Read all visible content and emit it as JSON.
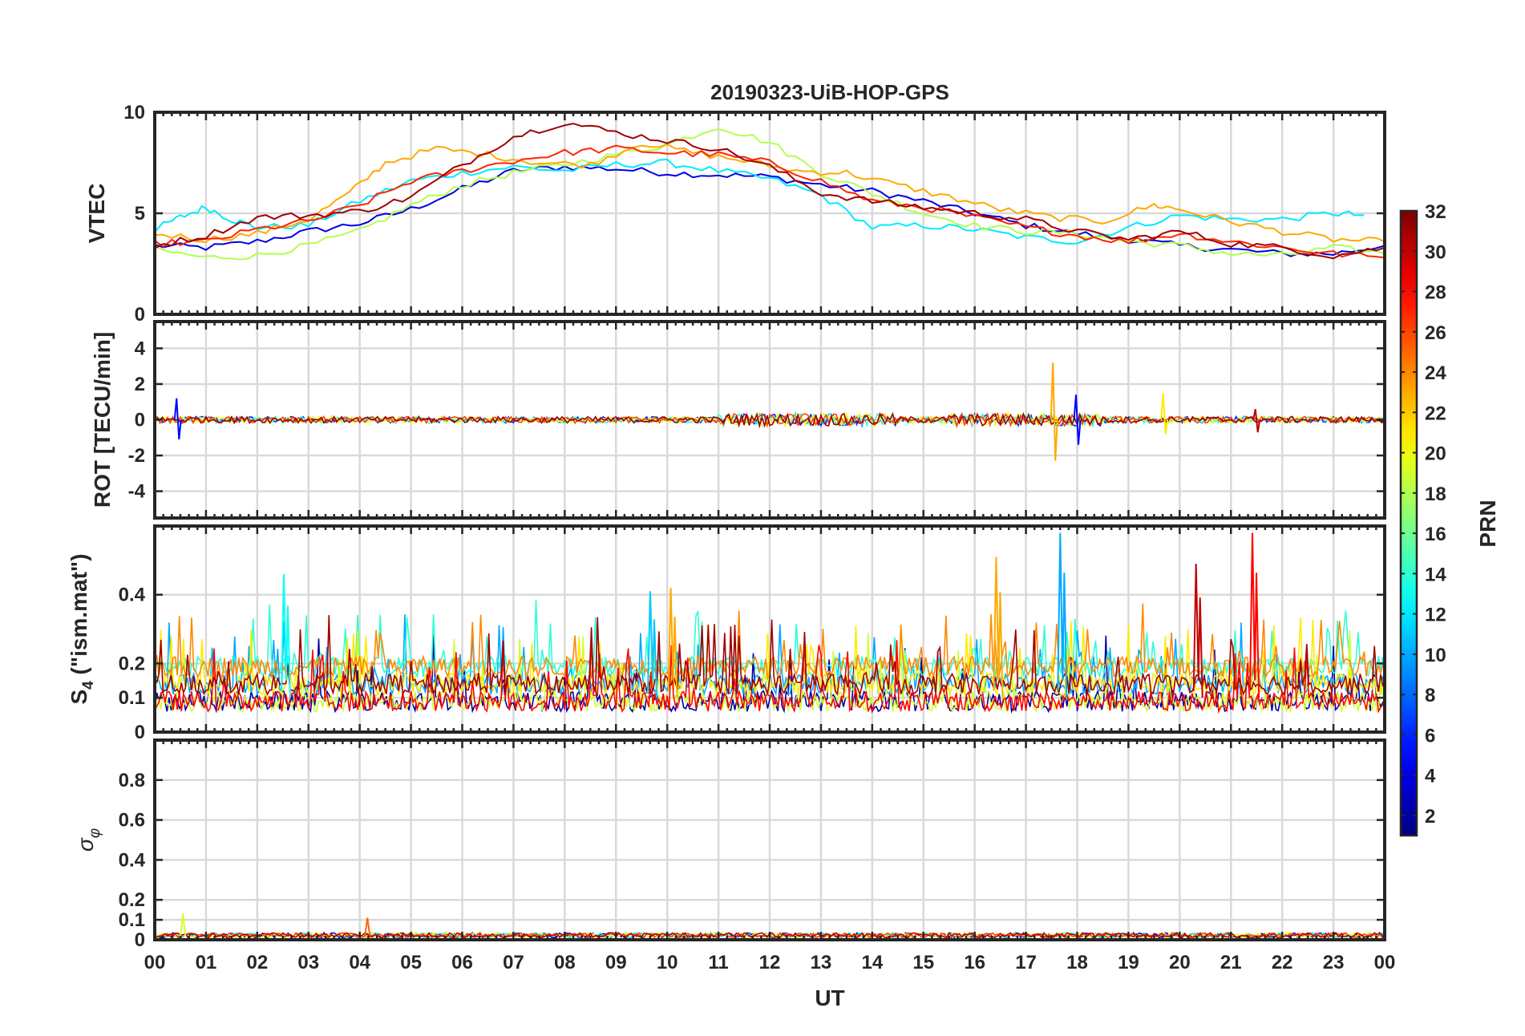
{
  "chart_data": {
    "type": "line",
    "title": "20190323-UiB-HOP-GPS",
    "xlabel": "UT",
    "xlim": [
      0,
      24
    ],
    "x_tick_labels": [
      "00",
      "01",
      "02",
      "03",
      "04",
      "05",
      "06",
      "07",
      "08",
      "09",
      "10",
      "11",
      "12",
      "13",
      "14",
      "15",
      "16",
      "17",
      "18",
      "19",
      "20",
      "21",
      "22",
      "23",
      "00"
    ],
    "panels": [
      {
        "id": "vtec",
        "ylabel": "VTEC",
        "ylim": [
          0,
          10
        ],
        "yticks": [
          0,
          5,
          10
        ],
        "ytick_labels": [
          "0",
          "5",
          "10"
        ],
        "series": [
          {
            "prn": 4,
            "values": [
              [
                0,
                3.4
              ],
              [
                1,
                3.3
              ],
              [
                2,
                3.6
              ],
              [
                3,
                4.1
              ],
              [
                4,
                4.5
              ],
              [
                5,
                5.2
              ],
              [
                6,
                6.2
              ],
              [
                7,
                7.1
              ],
              [
                8,
                7.3
              ],
              [
                9,
                7.2
              ],
              [
                10,
                7.0
              ],
              [
                11,
                6.9
              ],
              [
                12,
                6.8
              ],
              [
                13,
                6.4
              ],
              [
                14,
                6.1
              ],
              [
                15,
                5.6
              ],
              [
                16,
                5.0
              ],
              [
                17,
                4.4
              ],
              [
                18,
                4.0
              ],
              [
                19,
                3.7
              ],
              [
                20,
                3.4
              ],
              [
                21,
                3.2
              ],
              [
                22,
                3.0
              ],
              [
                23,
                3.0
              ],
              [
                24,
                3.4
              ]
            ]
          },
          {
            "prn": 12,
            "values": [
              [
                0,
                4.2
              ],
              [
                0.5,
                4.8
              ],
              [
                1,
                5.3
              ],
              [
                1.5,
                4.7
              ],
              [
                2,
                4.3
              ],
              [
                3,
                4.4
              ],
              [
                4,
                5.6
              ],
              [
                5,
                6.6
              ],
              [
                6,
                7.0
              ],
              [
                7,
                7.3
              ],
              [
                8,
                7.1
              ],
              [
                9,
                7.4
              ],
              [
                10,
                7.5
              ],
              [
                11,
                7.1
              ],
              [
                12,
                6.7
              ],
              [
                13,
                5.9
              ],
              [
                14,
                4.3
              ],
              [
                15,
                4.4
              ],
              [
                16,
                4.2
              ],
              [
                17,
                3.8
              ],
              [
                18,
                3.6
              ],
              [
                19,
                4.3
              ],
              [
                20,
                4.9
              ],
              [
                21,
                4.7
              ],
              [
                22,
                4.7
              ],
              [
                23,
                5.0
              ],
              [
                23.6,
                4.9
              ]
            ]
          },
          {
            "prn": 18,
            "values": [
              [
                0,
                3.2
              ],
              [
                1,
                2.8
              ],
              [
                2,
                2.9
              ],
              [
                3,
                3.4
              ],
              [
                4,
                4.1
              ],
              [
                5,
                5.4
              ],
              [
                6,
                6.4
              ],
              [
                7,
                7.0
              ],
              [
                8,
                7.4
              ],
              [
                9,
                7.9
              ],
              [
                10,
                8.4
              ],
              [
                11,
                9.3
              ],
              [
                12,
                8.5
              ],
              [
                13,
                7.0
              ],
              [
                14,
                6.0
              ],
              [
                15,
                5.0
              ],
              [
                16,
                4.4
              ],
              [
                17,
                4.1
              ],
              [
                18,
                4.0
              ],
              [
                19,
                3.6
              ],
              [
                20,
                3.4
              ],
              [
                21,
                3.0
              ],
              [
                22,
                2.9
              ],
              [
                23,
                3.3
              ],
              [
                24,
                3.0
              ]
            ]
          },
          {
            "prn": 23,
            "values": [
              [
                0,
                4.0
              ],
              [
                1,
                3.7
              ],
              [
                2,
                4.0
              ],
              [
                3,
                4.7
              ],
              [
                3.8,
                6.0
              ],
              [
                4.5,
                7.5
              ],
              [
                5.5,
                8.2
              ],
              [
                6.5,
                7.9
              ],
              [
                7.5,
                7.5
              ],
              [
                8.5,
                7.4
              ],
              [
                9.5,
                8.5
              ],
              [
                10.5,
                8.0
              ],
              [
                11.5,
                7.6
              ],
              [
                12.5,
                7.1
              ],
              [
                13.5,
                7.0
              ],
              [
                14.5,
                6.4
              ],
              [
                15.5,
                5.8
              ],
              [
                16.5,
                5.2
              ],
              [
                17.5,
                4.8
              ],
              [
                18.5,
                4.6
              ],
              [
                19.5,
                5.4
              ],
              [
                20,
                5.2
              ],
              [
                21,
                4.6
              ],
              [
                22,
                4.1
              ],
              [
                23,
                3.7
              ],
              [
                24,
                3.6
              ]
            ]
          },
          {
            "prn": 27,
            "values": [
              [
                0,
                3.5
              ],
              [
                1,
                3.6
              ],
              [
                2,
                4.2
              ],
              [
                3,
                4.6
              ],
              [
                4,
                5.4
              ],
              [
                5,
                6.6
              ],
              [
                6,
                7.1
              ],
              [
                7,
                7.6
              ],
              [
                8,
                8.0
              ],
              [
                9,
                8.2
              ],
              [
                10,
                8.0
              ],
              [
                11,
                7.9
              ],
              [
                12,
                7.5
              ],
              [
                13,
                6.6
              ],
              [
                14,
                5.6
              ],
              [
                15,
                5.3
              ],
              [
                16,
                4.8
              ],
              [
                17,
                4.3
              ],
              [
                18,
                3.9
              ],
              [
                19,
                3.6
              ],
              [
                20,
                4.0
              ],
              [
                21,
                3.6
              ],
              [
                22,
                3.3
              ],
              [
                23,
                3.0
              ],
              [
                24,
                2.8
              ]
            ]
          },
          {
            "prn": 31,
            "values": [
              [
                0,
                3.4
              ],
              [
                1,
                3.9
              ],
              [
                2,
                4.8
              ],
              [
                3,
                4.9
              ],
              [
                4,
                5.1
              ],
              [
                5,
                5.8
              ],
              [
                6,
                7.4
              ],
              [
                7,
                8.8
              ],
              [
                8,
                9.5
              ],
              [
                9,
                9.0
              ],
              [
                10,
                8.6
              ],
              [
                11,
                8.2
              ],
              [
                12,
                7.3
              ],
              [
                13,
                6.0
              ],
              [
                14,
                5.6
              ],
              [
                15,
                5.3
              ],
              [
                16,
                5.0
              ],
              [
                17,
                4.7
              ],
              [
                18,
                4.1
              ],
              [
                19,
                3.7
              ],
              [
                20,
                4.1
              ],
              [
                21,
                3.5
              ],
              [
                22,
                3.3
              ],
              [
                23,
                2.9
              ],
              [
                24,
                3.3
              ]
            ]
          }
        ]
      },
      {
        "id": "rot",
        "ylabel": "ROT [TECU/min]",
        "ylim": [
          -5.5,
          5.5
        ],
        "yticks": [
          -4,
          -2,
          0,
          2,
          4
        ],
        "ytick_labels": [
          "-4",
          "-2",
          "0",
          "2",
          "4"
        ],
        "note": "noise envelope about 0 with isolated spikes",
        "spikes": [
          {
            "prn": 5,
            "t": 0.45,
            "min": -1.1,
            "max": 1.2
          },
          {
            "prn": 23,
            "t": 17.55,
            "min": -2.3,
            "max": 3.2
          },
          {
            "prn": 5,
            "t": 18.0,
            "min": -1.4,
            "max": 1.4
          },
          {
            "prn": 21,
            "t": 19.7,
            "min": -0.8,
            "max": 1.5
          },
          {
            "prn": 30,
            "t": 21.5,
            "min": -0.7,
            "max": 0.6
          }
        ]
      },
      {
        "id": "s4",
        "ylabel": "S4 (\"ism.mat\")",
        "ylim": [
          0,
          0.6
        ],
        "yticks": [
          0,
          0.1,
          0.2,
          0.4
        ],
        "ytick_labels": [
          "0",
          "0.1",
          "0.2",
          "0.4"
        ],
        "note": "dense noisy traces, baseline around 0.05-0.15",
        "peaks": [
          {
            "prn": 13,
            "t": 2.55,
            "value": 0.46
          },
          {
            "prn": 11,
            "t": 9.7,
            "value": 0.41
          },
          {
            "prn": 23,
            "t": 10.1,
            "value": 0.42
          },
          {
            "prn": 23,
            "t": 16.45,
            "value": 0.51
          },
          {
            "prn": 10,
            "t": 17.7,
            "value": 0.58
          },
          {
            "prn": 30,
            "t": 20.35,
            "value": 0.49
          },
          {
            "prn": 28,
            "t": 21.45,
            "value": 0.58
          }
        ]
      },
      {
        "id": "sigma_phi",
        "ylabel": "σ_φ",
        "ylim": [
          0,
          1
        ],
        "yticks": [
          0,
          0.1,
          0.2,
          0.4,
          0.6,
          0.8
        ],
        "ytick_labels": [
          "0",
          "0.1",
          "0.2",
          "0.4",
          "0.6",
          "0.8"
        ],
        "note": "values near zero, baseline around 0.02",
        "peaks": [
          {
            "prn": 19,
            "t": 0.55,
            "value": 0.13
          },
          {
            "prn": 25,
            "t": 4.15,
            "value": 0.11
          }
        ]
      }
    ],
    "colorbar": {
      "label": "PRN",
      "range": [
        1,
        32
      ],
      "ticks": [
        2,
        4,
        6,
        8,
        10,
        12,
        14,
        16,
        18,
        20,
        22,
        24,
        26,
        28,
        30,
        32
      ],
      "tick_labels": [
        "2",
        "4",
        "6",
        "8",
        "10",
        "12",
        "14",
        "16",
        "18",
        "20",
        "22",
        "24",
        "26",
        "28",
        "30",
        "32"
      ],
      "colormap": "jet"
    }
  }
}
